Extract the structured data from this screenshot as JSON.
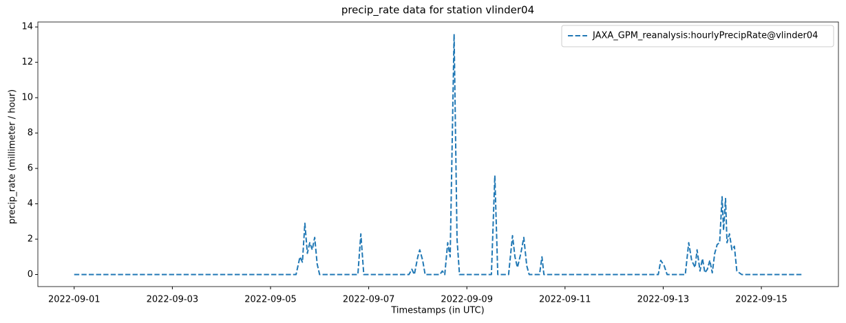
{
  "chart_data": {
    "type": "line",
    "title": "precip_rate data for station vlinder04",
    "x_label": "Timestamps (in UTC)",
    "y_label": "precip_rate (millimeter / hour)",
    "x": [
      0,
      4.52,
      4.6,
      4.65,
      4.7,
      4.75,
      4.8,
      4.85,
      4.9,
      4.95,
      5.0,
      5.78,
      5.84,
      5.9,
      6.82,
      6.88,
      6.93,
      7.0,
      7.04,
      7.1,
      7.15,
      7.45,
      7.5,
      7.55,
      7.61,
      7.66,
      7.74,
      7.8,
      7.85,
      8.5,
      8.57,
      8.63,
      8.85,
      8.93,
      8.98,
      9.03,
      9.1,
      9.16,
      9.22,
      9.27,
      9.48,
      9.53,
      9.57,
      11.9,
      11.95,
      12.02,
      12.08,
      12.45,
      12.52,
      12.58,
      12.65,
      12.69,
      12.75,
      12.8,
      12.85,
      12.9,
      12.95,
      13.0,
      13.05,
      13.1,
      13.15,
      13.2,
      13.23,
      13.27,
      13.3,
      13.35,
      13.4,
      13.45,
      13.5,
      13.6,
      14.83
    ],
    "series": [
      {
        "name": "JAXA_GPM_reanalysis:hourlyPrecipRate@vlinder04",
        "color": "#1f77b4",
        "values": [
          0,
          0,
          1.0,
          0.7,
          2.9,
          1.2,
          1.8,
          1.4,
          2.1,
          0.6,
          0,
          0,
          2.3,
          0,
          0,
          0.3,
          0,
          1.0,
          1.4,
          0.8,
          0,
          0,
          0.2,
          0,
          1.8,
          1.0,
          13.6,
          2.0,
          0,
          0,
          5.6,
          0,
          0,
          2.2,
          1.0,
          0.4,
          1.2,
          2.1,
          0.5,
          0,
          0,
          1.0,
          0,
          0,
          0.8,
          0.5,
          0,
          0,
          1.8,
          0.8,
          0.4,
          1.4,
          0.2,
          0.9,
          0.1,
          0.3,
          0.8,
          0.1,
          1.2,
          1.7,
          1.8,
          4.4,
          2.5,
          4.3,
          1.8,
          2.3,
          1.4,
          1.6,
          0.2,
          0,
          0
        ]
      }
    ],
    "xlim": [
      -0.74,
      15.57
    ],
    "xticks": [
      {
        "value": 0,
        "label": "2022-09-01"
      },
      {
        "value": 2,
        "label": "2022-09-03"
      },
      {
        "value": 4,
        "label": "2022-09-05"
      },
      {
        "value": 6,
        "label": "2022-09-07"
      },
      {
        "value": 8,
        "label": "2022-09-09"
      },
      {
        "value": 10,
        "label": "2022-09-11"
      },
      {
        "value": 12,
        "label": "2022-09-13"
      },
      {
        "value": 14,
        "label": "2022-09-15"
      }
    ],
    "ylim": [
      -0.68,
      14.28
    ],
    "yticks": [
      0,
      2,
      4,
      6,
      8,
      10,
      12,
      14
    ],
    "line_style": "dashed",
    "grid": false,
    "legend": "upper-right"
  }
}
